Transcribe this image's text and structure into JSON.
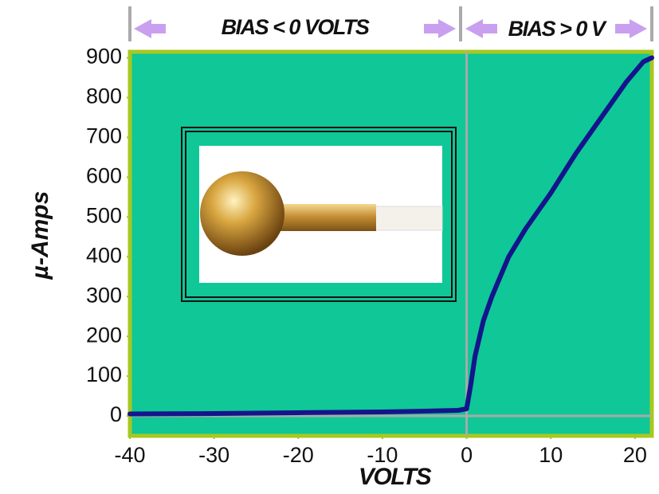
{
  "chart_data": {
    "type": "line",
    "annotations": [
      "BIAS < 0 VOLTS",
      "BIAS > 0 V"
    ],
    "xlabel": "VOLTS",
    "ylabel": "µ-Amps",
    "x": [
      -40,
      -30,
      -20,
      -10,
      -5,
      -1,
      0,
      0.5,
      1,
      2,
      3,
      4,
      5,
      7,
      10,
      13,
      16,
      19,
      21,
      22
    ],
    "values": [
      5,
      6,
      8,
      10,
      12,
      14,
      18,
      80,
      150,
      240,
      300,
      350,
      400,
      470,
      560,
      660,
      750,
      840,
      890,
      900
    ],
    "color": "#14148c",
    "xlim": [
      -40,
      22
    ],
    "xticks": [
      -40,
      -30,
      -20,
      -10,
      0,
      10,
      20
    ],
    "ylim": [
      -50,
      915
    ],
    "yticks": [
      0,
      100,
      200,
      300,
      400,
      500,
      600,
      700,
      800,
      900
    ],
    "background": "#0fc797",
    "border": "#a8c820"
  }
}
